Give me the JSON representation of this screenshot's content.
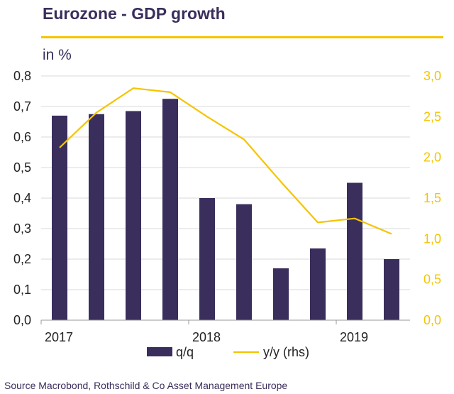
{
  "header": {
    "title": "Eurozone - GDP growth",
    "unit": "in %"
  },
  "footer": {
    "source": "Source Macrobond, Rothschild & Co Asset Management  Europe"
  },
  "colors": {
    "bar": "#3a2e5c",
    "line": "#f5c400",
    "title": "#3a2e5c",
    "grid": "#d9d9d9",
    "text": "#222222"
  },
  "chart_data": {
    "type": "bar",
    "x": [
      "2017 Q1",
      "2017 Q2",
      "2017 Q3",
      "2017 Q4",
      "2018 Q1",
      "2018 Q2",
      "2018 Q3",
      "2018 Q4",
      "2019 Q1",
      "2019 Q2"
    ],
    "x_tick_labels": [
      {
        "label": "2017",
        "at": "2017 Q1"
      },
      {
        "label": "2018",
        "at": "2018 Q1"
      },
      {
        "label": "2019",
        "at": "2019 Q1"
      }
    ],
    "series": [
      {
        "name": "q/q",
        "type": "bar",
        "axis": "left",
        "values": [
          0.67,
          0.675,
          0.685,
          0.725,
          0.4,
          0.38,
          0.17,
          0.235,
          0.45,
          0.2
        ]
      },
      {
        "name": "y/y (rhs)",
        "type": "line",
        "axis": "right",
        "values": [
          2.12,
          2.55,
          2.85,
          2.8,
          2.5,
          2.22,
          1.7,
          1.2,
          1.25,
          1.06
        ]
      }
    ],
    "y_left": {
      "range": [
        0,
        0.8
      ],
      "ticks": [
        "0,0",
        "0,1",
        "0,2",
        "0,3",
        "0,4",
        "0,5",
        "0,6",
        "0,7",
        "0,8"
      ]
    },
    "y_right": {
      "range": [
        0,
        3.0
      ],
      "ticks": [
        "0,0",
        "0,5",
        "1,0",
        "1,5",
        "2,0",
        "2,5",
        "3,0"
      ]
    },
    "grid": true,
    "legend": "bottom"
  }
}
